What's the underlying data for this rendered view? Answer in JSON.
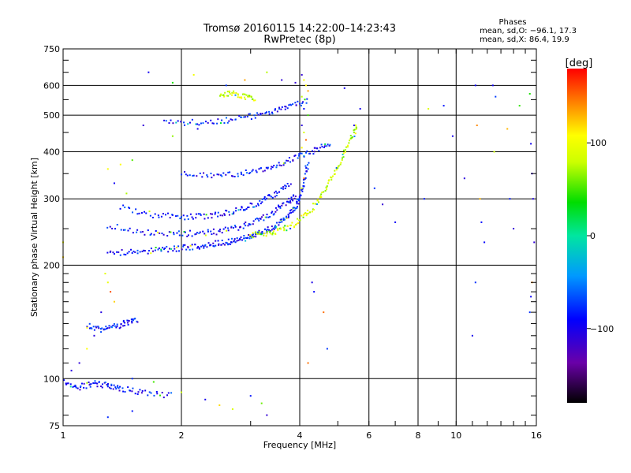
{
  "chart_data": {
    "type": "scatter",
    "title": "Tromsø 20160115 14:22:00–14:23:43",
    "subtitle": "RwPretec (8p)",
    "xlabel": "Frequency [MHz]",
    "ylabel": "Stationary phase Virtual Height [km]",
    "x_scale": "log",
    "y_scale": "log",
    "xlim": [
      1,
      16
    ],
    "ylim": [
      75,
      750
    ],
    "x_ticks": [
      1,
      2,
      4,
      6,
      8,
      10,
      16
    ],
    "x_tick_labels": [
      "1",
      "2",
      "4",
      "6",
      "8",
      "10",
      "16"
    ],
    "y_ticks": [
      75,
      100,
      200,
      300,
      400,
      500,
      600,
      750
    ],
    "y_tick_labels": [
      "75",
      "100",
      "200",
      "300",
      "400",
      "500",
      "600",
      "750"
    ],
    "grid": true,
    "colorbar": {
      "label": "[deg]",
      "range": [
        -180,
        180
      ],
      "ticks": [
        -100,
        0,
        100
      ],
      "tick_labels": [
        "−100",
        "0",
        "100"
      ],
      "colormap": "rainbow"
    },
    "stats": {
      "heading": "Phases",
      "line_o": "mean, sd,O: −96.1, 17.3",
      "line_x": "mean, sd,X:  86.4, 19.9"
    },
    "traces": [
      {
        "mode": "O",
        "phase_mean": -96,
        "points": [
          [
            1.3,
            215
          ],
          [
            1.5,
            217
          ],
          [
            1.7,
            219
          ],
          [
            1.9,
            221
          ],
          [
            2.1,
            223
          ],
          [
            2.3,
            226
          ],
          [
            2.5,
            229
          ],
          [
            2.7,
            232
          ],
          [
            2.9,
            236
          ],
          [
            3.1,
            241
          ],
          [
            3.3,
            247
          ],
          [
            3.5,
            256
          ],
          [
            3.7,
            268
          ],
          [
            3.9,
            285
          ],
          [
            4.0,
            300
          ],
          [
            4.1,
            330
          ],
          [
            4.2,
            380
          ]
        ]
      },
      {
        "mode": "O",
        "phase_mean": -96,
        "points": [
          [
            1.3,
            255
          ],
          [
            1.6,
            245
          ],
          [
            1.9,
            242
          ],
          [
            2.2,
            243
          ],
          [
            2.5,
            246
          ],
          [
            2.8,
            252
          ],
          [
            3.1,
            262
          ],
          [
            3.4,
            275
          ],
          [
            3.7,
            292
          ],
          [
            3.9,
            305
          ]
        ]
      },
      {
        "mode": "O",
        "phase_mean": -96,
        "points": [
          [
            1.4,
            285
          ],
          [
            1.7,
            272
          ],
          [
            2.0,
            268
          ],
          [
            2.3,
            270
          ],
          [
            2.6,
            275
          ],
          [
            2.9,
            283
          ],
          [
            3.2,
            295
          ],
          [
            3.5,
            310
          ],
          [
            3.8,
            330
          ]
        ]
      },
      {
        "mode": "O",
        "phase_mean": -96,
        "points": [
          [
            2.0,
            350
          ],
          [
            2.4,
            346
          ],
          [
            2.8,
            350
          ],
          [
            3.2,
            358
          ],
          [
            3.6,
            372
          ],
          [
            4.0,
            390
          ],
          [
            4.4,
            405
          ],
          [
            4.8,
            425
          ]
        ]
      },
      {
        "mode": "O",
        "phase_mean": -96,
        "points": [
          [
            1.8,
            480
          ],
          [
            2.2,
            478
          ],
          [
            2.6,
            485
          ],
          [
            3.0,
            496
          ],
          [
            3.4,
            510
          ],
          [
            3.8,
            530
          ],
          [
            4.2,
            545
          ]
        ]
      },
      {
        "mode": "O",
        "phase_mean": -96,
        "points": [
          [
            1.15,
            138
          ],
          [
            1.25,
            135
          ],
          [
            1.35,
            137
          ],
          [
            1.45,
            141
          ],
          [
            1.55,
            143
          ]
        ]
      },
      {
        "mode": "O",
        "phase_mean": -96,
        "points": [
          [
            1.0,
            98
          ],
          [
            1.1,
            95
          ],
          [
            1.2,
            97
          ],
          [
            1.3,
            96
          ],
          [
            1.4,
            94
          ],
          [
            1.6,
            92
          ],
          [
            1.9,
            90
          ]
        ]
      },
      {
        "mode": "X",
        "phase_mean": 86,
        "points": [
          [
            3.0,
            240
          ],
          [
            3.3,
            242
          ],
          [
            3.6,
            248
          ],
          [
            3.9,
            258
          ],
          [
            4.2,
            275
          ],
          [
            4.5,
            300
          ],
          [
            4.8,
            335
          ],
          [
            5.1,
            380
          ],
          [
            5.4,
            430
          ],
          [
            5.6,
            470
          ]
        ]
      },
      {
        "mode": "X",
        "phase_mean": 86,
        "points": [
          [
            2.5,
            560
          ],
          [
            2.7,
            575
          ],
          [
            2.9,
            560
          ],
          [
            3.1,
            550
          ]
        ]
      }
    ],
    "scatter_points": [
      [
        1.0,
        210
      ],
      [
        1.0,
        230
      ],
      [
        4.05,
        640
      ],
      [
        4.1,
        620
      ],
      [
        4.15,
        600
      ],
      [
        4.2,
        580
      ],
      [
        4.05,
        560
      ],
      [
        4.1,
        520
      ],
      [
        4.2,
        500
      ],
      [
        4.05,
        470
      ],
      [
        4.1,
        450
      ],
      [
        4.15,
        430
      ],
      [
        4.05,
        410
      ],
      [
        4.2,
        360
      ],
      [
        4.1,
        340
      ],
      [
        4.05,
        320
      ],
      [
        4.3,
        180
      ],
      [
        4.35,
        170
      ],
      [
        4.6,
        150
      ],
      [
        4.7,
        120
      ],
      [
        4.2,
        110
      ],
      [
        5.7,
        520
      ],
      [
        5.2,
        590
      ],
      [
        5.5,
        470
      ],
      [
        6.2,
        320
      ],
      [
        6.5,
        290
      ],
      [
        7.0,
        260
      ],
      [
        8.3,
        300
      ],
      [
        8.5,
        520
      ],
      [
        9.3,
        530
      ],
      [
        9.8,
        440
      ],
      [
        10.5,
        340
      ],
      [
        11.2,
        600
      ],
      [
        11.3,
        470
      ],
      [
        11.5,
        300
      ],
      [
        11.6,
        260
      ],
      [
        11.8,
        230
      ],
      [
        11.2,
        180
      ],
      [
        11.0,
        130
      ],
      [
        12.4,
        600
      ],
      [
        12.6,
        560
      ],
      [
        12.5,
        400
      ],
      [
        13.5,
        460
      ],
      [
        13.7,
        300
      ],
      [
        14.0,
        250
      ],
      [
        14.5,
        530
      ],
      [
        15.4,
        570
      ],
      [
        15.5,
        420
      ],
      [
        15.6,
        350
      ],
      [
        15.7,
        300
      ],
      [
        15.8,
        230
      ],
      [
        15.6,
        180
      ],
      [
        15.5,
        165
      ],
      [
        15.4,
        150
      ],
      [
        1.65,
        650
      ],
      [
        1.9,
        610
      ],
      [
        2.15,
        640
      ],
      [
        2.6,
        600
      ],
      [
        2.9,
        620
      ],
      [
        3.3,
        650
      ],
      [
        3.6,
        620
      ],
      [
        3.9,
        610
      ],
      [
        2.2,
        460
      ],
      [
        1.9,
        440
      ],
      [
        1.6,
        470
      ],
      [
        1.5,
        380
      ],
      [
        1.4,
        370
      ],
      [
        1.3,
        360
      ],
      [
        1.35,
        330
      ],
      [
        1.45,
        310
      ],
      [
        1.3,
        180
      ],
      [
        1.32,
        170
      ],
      [
        1.28,
        190
      ],
      [
        1.35,
        160
      ],
      [
        1.25,
        150
      ],
      [
        1.2,
        130
      ],
      [
        1.15,
        120
      ],
      [
        1.1,
        110
      ],
      [
        1.05,
        105
      ],
      [
        1.5,
        100
      ],
      [
        1.7,
        98
      ],
      [
        2.0,
        92
      ],
      [
        2.3,
        88
      ],
      [
        2.5,
        85
      ],
      [
        2.7,
        83
      ],
      [
        3.0,
        90
      ],
      [
        3.2,
        86
      ],
      [
        3.3,
        80
      ],
      [
        1.3,
        79
      ],
      [
        1.5,
        82
      ]
    ]
  }
}
